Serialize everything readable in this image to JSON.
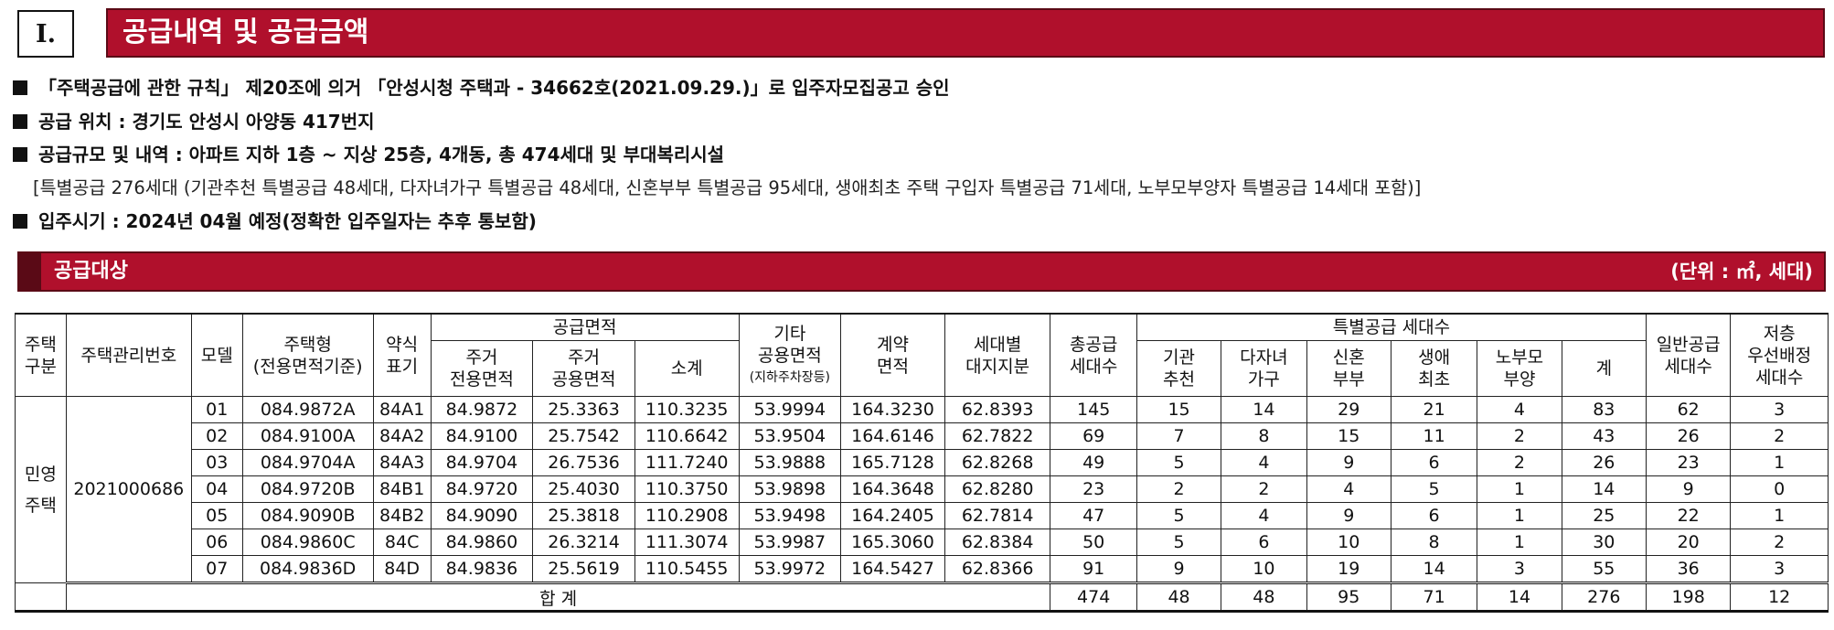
{
  "section": {
    "number": "I.",
    "title": "공급내역 및 공급금액"
  },
  "info_lines": [
    "「주택공급에 관한 규칙」 제20조에 의거 「안성시청 주택과 - 34662호(2021.09.29.)」로 입주자모집공고 승인",
    "공급 위치 : 경기도 안성시 아양동 417번지",
    "공급규모 및 내역 : 아파트 지하 1층 ~ 지상 25층, 4개동, 총 474세대 및 부대복리시설"
  ],
  "info_detail": "[특별공급 276세대 (기관추천 특별공급 48세대, 다자녀가구 특별공급 48세대, 신혼부부 특별공급 95세대, 생애최초 주택 구입자 특별공급 71세대, 노부모부양자 특별공급 14세대 포함)]",
  "move_in": "입주시기 : 2024년 04월 예정(정확한 입주일자는 추후 통보함)",
  "sub_header": {
    "title": "공급대상",
    "unit": "(단위 : ㎡, 세대)"
  },
  "table": {
    "headers": {
      "housing_type_col": "주택\n구분",
      "mgmt_no": "주택관리번호",
      "model": "모델",
      "house_type": "주택형\n(전용면적기준)",
      "abbr": "약식\n표기",
      "supply_area": "공급면적",
      "exclusive": "주거\n전용면적",
      "common": "주거\n공용면적",
      "subtotal": "소계",
      "other_common": "기타\n공용면적",
      "other_common_note": "(지하주차장등)",
      "contract_area": "계약\n면적",
      "land_share": "세대별\n대지지분",
      "total_units": "총공급\n세대수",
      "special": "특별공급 세대수",
      "inst": "기관\n추천",
      "multi": "다자녀\n가구",
      "newlywed": "신혼\n부부",
      "first": "생애\n최초",
      "elderly": "노부모\n부양",
      "sum": "계",
      "general": "일반공급\n세대수",
      "low_floor": "저층\n우선배정\n세대수"
    },
    "housing_type": "민영\n주택",
    "mgmt_no": "2021000686",
    "rows": [
      [
        "01",
        "084.9872A",
        "84A1",
        "84.9872",
        "25.3363",
        "110.3235",
        "53.9994",
        "164.3230",
        "62.8393",
        "145",
        "15",
        "14",
        "29",
        "21",
        "4",
        "83",
        "62",
        "3"
      ],
      [
        "02",
        "084.9100A",
        "84A2",
        "84.9100",
        "25.7542",
        "110.6642",
        "53.9504",
        "164.6146",
        "62.7822",
        "69",
        "7",
        "8",
        "15",
        "11",
        "2",
        "43",
        "26",
        "2"
      ],
      [
        "03",
        "084.9704A",
        "84A3",
        "84.9704",
        "26.7536",
        "111.7240",
        "53.9888",
        "165.7128",
        "62.8268",
        "49",
        "5",
        "4",
        "9",
        "6",
        "2",
        "26",
        "23",
        "1"
      ],
      [
        "04",
        "084.9720B",
        "84B1",
        "84.9720",
        "25.4030",
        "110.3750",
        "53.9898",
        "164.3648",
        "62.8280",
        "23",
        "2",
        "2",
        "4",
        "5",
        "1",
        "14",
        "9",
        "0"
      ],
      [
        "05",
        "084.9090B",
        "84B2",
        "84.9090",
        "25.3818",
        "110.2908",
        "53.9498",
        "164.2405",
        "62.7814",
        "47",
        "5",
        "4",
        "9",
        "6",
        "1",
        "25",
        "22",
        "1"
      ],
      [
        "06",
        "084.9860C",
        "84C",
        "84.9860",
        "26.3214",
        "111.3074",
        "53.9987",
        "165.3060",
        "62.8384",
        "50",
        "5",
        "6",
        "10",
        "8",
        "1",
        "30",
        "20",
        "2"
      ],
      [
        "07",
        "084.9836D",
        "84D",
        "84.9836",
        "25.5619",
        "110.5455",
        "53.9972",
        "164.5427",
        "62.8366",
        "91",
        "9",
        "10",
        "19",
        "14",
        "3",
        "55",
        "36",
        "3"
      ]
    ],
    "total_label": "합 계",
    "total": [
      "474",
      "48",
      "48",
      "95",
      "71",
      "14",
      "276",
      "198",
      "12"
    ]
  }
}
